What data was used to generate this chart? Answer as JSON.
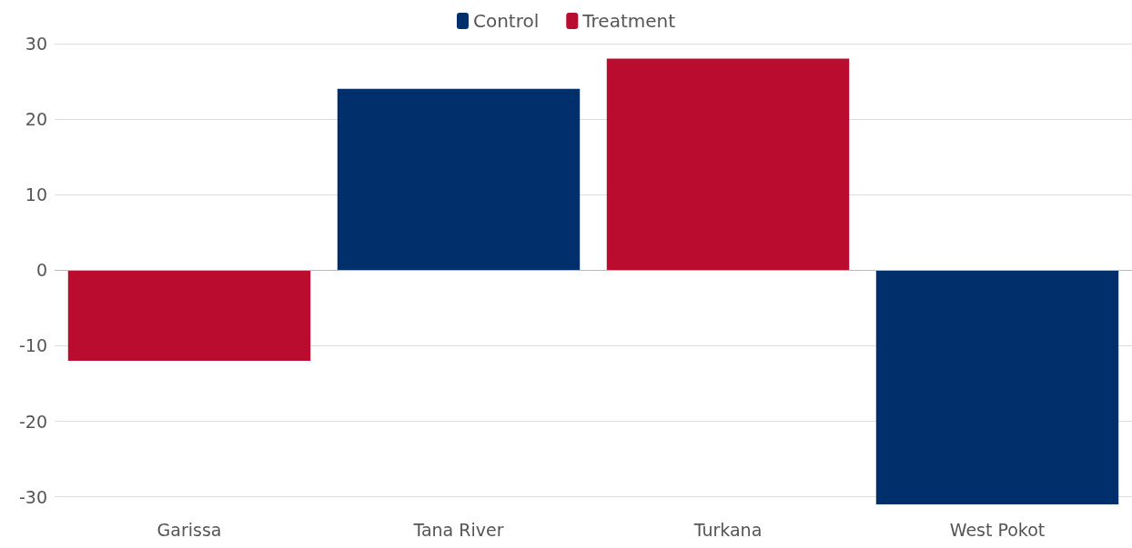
{
  "chart_data": {
    "type": "bar",
    "categories": [
      "Garissa",
      "Tana River",
      "Turkana",
      "West Pokot"
    ],
    "series": [
      {
        "name": "Control",
        "color": "#002f6c",
        "values": [
          null,
          24,
          null,
          -31
        ]
      },
      {
        "name": "Treatment",
        "color": "#ba0c2f",
        "values": [
          -12,
          null,
          28,
          null
        ]
      }
    ],
    "ylim": [
      -31,
      30
    ],
    "yticks": [
      -30,
      -20,
      -10,
      0,
      10,
      20,
      30
    ],
    "grid": "y",
    "legend": "top",
    "ref_lines": [
      {
        "axis": "y",
        "value": 0,
        "color": "#f4a0a0"
      }
    ]
  }
}
